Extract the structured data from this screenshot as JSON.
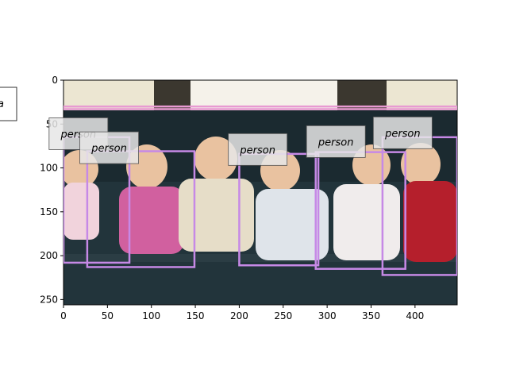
{
  "axes": {
    "x_ticks": [
      0,
      50,
      100,
      150,
      200,
      250,
      300,
      350,
      400
    ],
    "y_ticks": [
      0,
      50,
      100,
      150,
      200,
      250
    ],
    "xlim": [
      0,
      448
    ],
    "ylim": [
      0,
      256
    ]
  },
  "photo": {
    "subject": "seven babies seated on a dark sofa",
    "colors": {
      "wall": "#ece6d2",
      "curtain": "#3b372f",
      "sofa": "#1b2a30",
      "sofa_highlight": "#2b3d44",
      "skin": "#e9c2a0"
    }
  },
  "legend_fragment": {
    "text": "a"
  },
  "detections": [
    {
      "label": "person",
      "x0": 0,
      "y0": 30,
      "x1": 448,
      "y1": 33,
      "color": "#e89ad2"
    },
    {
      "label": "person",
      "x0": 0,
      "y0": 65,
      "x1": 75,
      "y1": 208,
      "color": "#c689e6",
      "label_x": 17,
      "label_y": 61
    },
    {
      "label": "person",
      "x0": 27,
      "y0": 81,
      "x1": 149,
      "y1": 213,
      "color": "#c689e6",
      "label_x": 52,
      "label_y": 77
    },
    {
      "label": "person",
      "x0": 200,
      "y0": 84,
      "x1": 290,
      "y1": 211,
      "color": "#c689e6",
      "label_x": 221,
      "label_y": 79
    },
    {
      "label": "person",
      "x0": 287,
      "y0": 82,
      "x1": 389,
      "y1": 215,
      "color": "#c689e6",
      "label_x": 310,
      "label_y": 70
    },
    {
      "label": "person",
      "x0": 363,
      "y0": 65,
      "x1": 448,
      "y1": 222,
      "color": "#c689e6",
      "label_x": 386,
      "label_y": 60
    }
  ]
}
